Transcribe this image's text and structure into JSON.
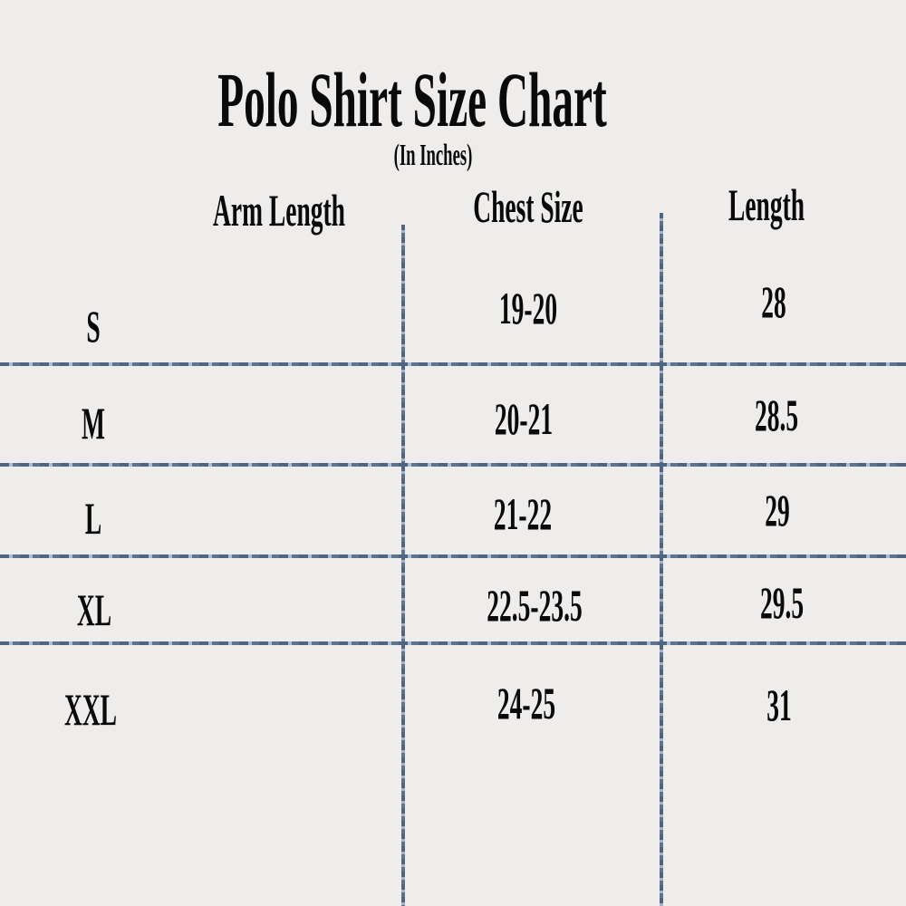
{
  "title": "Polo Shirt Size Chart",
  "subtitle": "(In Inches)",
  "headers": [
    "Arm Length",
    "Chest Size",
    "Length"
  ],
  "rows": [
    {
      "size": "S",
      "chest": "19-20",
      "length": "28"
    },
    {
      "size": "M",
      "chest": "20-21",
      "length": "28.5"
    },
    {
      "size": "L",
      "chest": "21-22",
      "length": "29"
    },
    {
      "size": "XL",
      "chest": "22.5-23.5",
      "length": "29.5"
    },
    {
      "size": "XXL",
      "chest": "24-25",
      "length": "31"
    }
  ],
  "colors": {
    "background": "#eeedeb",
    "grid_lines": "#5d7390",
    "text": "#0a0a0a"
  }
}
